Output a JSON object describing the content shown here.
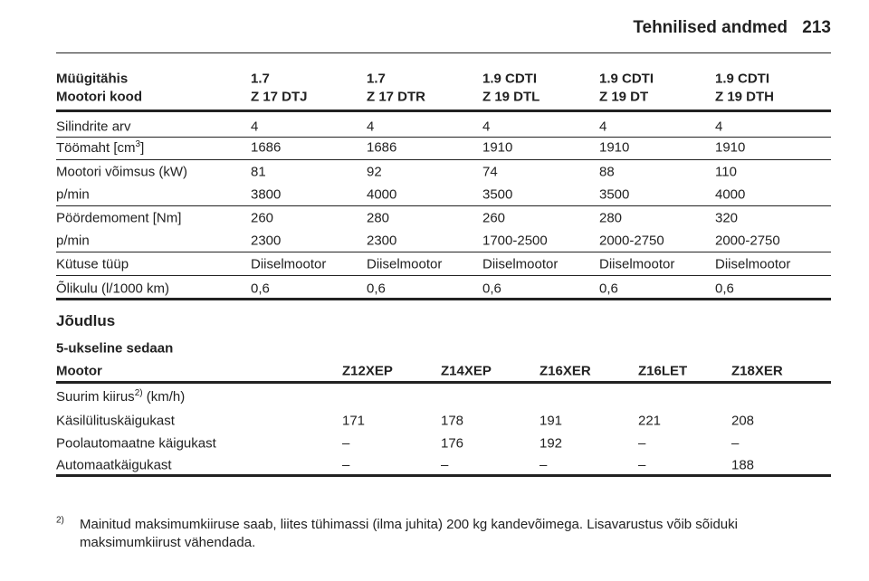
{
  "header": {
    "title": "Tehnilised andmed",
    "page": "213"
  },
  "table1": {
    "header": [
      [
        "Müügitähis",
        "1.7",
        "1.7",
        "1.9 CDTI",
        "1.9 CDTI",
        "1.9 CDTI"
      ],
      [
        "Mootori kood",
        "Z 17 DTJ",
        "Z 17 DTR",
        "Z 19 DTL",
        "Z 19 DT",
        "Z 19 DTH"
      ]
    ],
    "rows": [
      [
        "Silindrite arv",
        "4",
        "4",
        "4",
        "4",
        "4"
      ],
      [
        {
          "main": "Töömaht [cm",
          "sup": "3",
          "tail": "]"
        },
        "1686",
        "1686",
        "1910",
        "1910",
        "1910"
      ],
      [
        "Mootori võimsus (kW)",
        "81",
        "92",
        "74",
        "88",
        "110"
      ],
      [
        "p/min",
        "3800",
        "4000",
        "3500",
        "3500",
        "4000"
      ],
      [
        "Pöördemoment [Nm]",
        "260",
        "280",
        "260",
        "280",
        "320"
      ],
      [
        "p/min",
        "2300",
        "2300",
        "1700-2500",
        "2000-2750",
        "2000-2750"
      ],
      [
        "Kütuse tüüp",
        "Diiselmootor",
        "Diiselmootor",
        "Diiselmootor",
        "Diiselmootor",
        "Diiselmootor"
      ],
      [
        "Õlikulu (l/1000 km)",
        "0,6",
        "0,6",
        "0,6",
        "0,6",
        "0,6"
      ]
    ]
  },
  "section": {
    "title": "Jõudlus",
    "subtitle": "5-ukseline sedaan"
  },
  "table2": {
    "header": [
      "Mootor",
      "Z12XEP",
      "Z14XEP",
      "Z16XER",
      "Z16LET",
      "Z18XER"
    ],
    "rows": [
      [
        {
          "main": "Suurim kiirus",
          "sup": "2)",
          "tail": " (km/h)"
        }
      ],
      [
        "Käsilülituskäigukast",
        "171",
        "178",
        "191",
        "221",
        "208"
      ],
      [
        "Poolautomaatne käigukast",
        "–",
        "176",
        "192",
        "–",
        "–"
      ],
      [
        "Automaatkäigukast",
        "–",
        "–",
        "–",
        "–",
        "188"
      ]
    ]
  },
  "footnote": {
    "mark": "2)",
    "text": "Mainitud maksimumkiiruse saab, liites tühimassi (ilma juhita) 200 kg kandevõimega. Lisavarustus võib sõiduki maksimumkiirust vähendada."
  }
}
